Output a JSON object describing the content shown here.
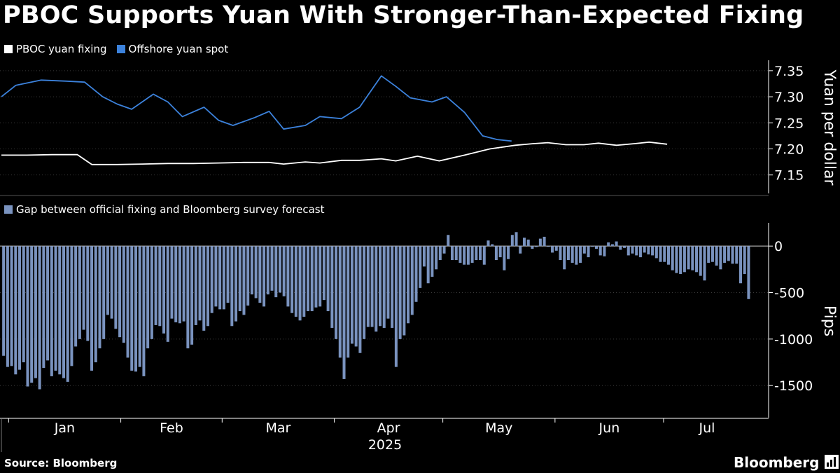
{
  "title": "PBOC Supports Yuan With Stronger-Than-Expected Fixing",
  "source": "Source: Bloomberg",
  "brand": "Bloomberg",
  "brand_icon": "bloomberg-terminal-icon",
  "colors": {
    "background": "#000000",
    "fixing": "#ffffff",
    "spot": "#3c82dc",
    "gap": "#7a93bf",
    "axis": "#ffffff",
    "grid": "#3a3a3a"
  },
  "chart_data": [
    {
      "type": "line",
      "legend": [
        "PBOC yuan fixing",
        "Offshore yuan spot"
      ],
      "legend_placement": "top-left",
      "ylabel": "Yuan per dollar",
      "yticks": [
        "7.15",
        "7.20",
        "7.25",
        "7.30",
        "7.35"
      ],
      "ylim": [
        7.12,
        7.37
      ],
      "xlim": [
        "2024-12-30",
        "2025-07-25"
      ],
      "series": [
        {
          "name": "PBOC yuan fixing",
          "points": [
            [
              "2024-12-30",
              7.188
            ],
            [
              "2025-01-06",
              7.188
            ],
            [
              "2025-01-13",
              7.189
            ],
            [
              "2025-01-20",
              7.189
            ],
            [
              "2025-01-24",
              7.17
            ],
            [
              "2025-01-31",
              7.17
            ],
            [
              "2025-02-07",
              7.171
            ],
            [
              "2025-02-14",
              7.172
            ],
            [
              "2025-02-21",
              7.172
            ],
            [
              "2025-02-28",
              7.173
            ],
            [
              "2025-03-07",
              7.174
            ],
            [
              "2025-03-14",
              7.174
            ],
            [
              "2025-03-18",
              7.171
            ],
            [
              "2025-03-24",
              7.175
            ],
            [
              "2025-03-28",
              7.173
            ],
            [
              "2025-04-03",
              7.178
            ],
            [
              "2025-04-08",
              7.178
            ],
            [
              "2025-04-14",
              7.181
            ],
            [
              "2025-04-18",
              7.177
            ],
            [
              "2025-04-24",
              7.186
            ],
            [
              "2025-04-30",
              7.177
            ],
            [
              "2025-05-07",
              7.188
            ],
            [
              "2025-05-14",
              7.2
            ],
            [
              "2025-05-21",
              7.207
            ],
            [
              "2025-05-26",
              7.21
            ],
            [
              "2025-05-30",
              7.212
            ],
            [
              "2025-06-04",
              7.208
            ],
            [
              "2025-06-09",
              7.208
            ],
            [
              "2025-06-13",
              7.211
            ],
            [
              "2025-06-18",
              7.207
            ],
            [
              "2025-06-23",
              7.21
            ],
            [
              "2025-06-27",
              7.213
            ],
            [
              "2025-07-02",
              7.209
            ]
          ]
        },
        {
          "name": "Offshore yuan spot",
          "points": [
            [
              "2024-12-30",
              7.3
            ],
            [
              "2025-01-03",
              7.322
            ],
            [
              "2025-01-10",
              7.332
            ],
            [
              "2025-01-17",
              7.33
            ],
            [
              "2025-01-22",
              7.328
            ],
            [
              "2025-01-27",
              7.3
            ],
            [
              "2025-01-31",
              7.286
            ],
            [
              "2025-02-04",
              7.276
            ],
            [
              "2025-02-10",
              7.305
            ],
            [
              "2025-02-14",
              7.29
            ],
            [
              "2025-02-18",
              7.262
            ],
            [
              "2025-02-24",
              7.28
            ],
            [
              "2025-02-28",
              7.255
            ],
            [
              "2025-03-04",
              7.245
            ],
            [
              "2025-03-10",
              7.26
            ],
            [
              "2025-03-14",
              7.272
            ],
            [
              "2025-03-18",
              7.238
            ],
            [
              "2025-03-24",
              7.245
            ],
            [
              "2025-03-28",
              7.262
            ],
            [
              "2025-04-03",
              7.258
            ],
            [
              "2025-04-08",
              7.28
            ],
            [
              "2025-04-14",
              7.34
            ],
            [
              "2025-04-18",
              7.32
            ],
            [
              "2025-04-22",
              7.298
            ],
            [
              "2025-04-28",
              7.29
            ],
            [
              "2025-05-02",
              7.3
            ],
            [
              "2025-05-07",
              7.27
            ],
            [
              "2025-05-12",
              7.225
            ],
            [
              "2025-05-16",
              7.218
            ],
            [
              "2025-05-20",
              7.215
            ]
          ]
        }
      ]
    },
    {
      "type": "bar",
      "legend": [
        "Gap between official fixing and Bloomberg survey forecast"
      ],
      "legend_placement": "top-left",
      "ylabel": "Pips",
      "yticks": [
        "-1500",
        "-1000",
        "-500",
        "0"
      ],
      "ylim": [
        -1800,
        250
      ],
      "xlim": [
        "2024-12-30",
        "2025-07-25"
      ],
      "xticks": [
        "Jan",
        "Feb",
        "Mar",
        "Apr",
        "May",
        "Jun",
        "Jul"
      ],
      "year_label": "2025",
      "series": [
        {
          "name": "Gap between official fixing and Bloomberg survey forecast",
          "start": "2024-12-30",
          "values": [
            -1180,
            -1300,
            -1290,
            -1380,
            -1330,
            -1250,
            -1510,
            -1470,
            -1420,
            -1540,
            -1310,
            -1230,
            -1400,
            -1340,
            -1380,
            -1420,
            -1460,
            -1290,
            -1080,
            -1000,
            -900,
            -1020,
            -1340,
            -1250,
            -1100,
            -1000,
            -740,
            -780,
            -890,
            -980,
            -1040,
            -1200,
            -1340,
            -1350,
            -1300,
            -1400,
            -1100,
            -1000,
            -850,
            -860,
            -940,
            -1030,
            -780,
            -820,
            -830,
            -810,
            -1100,
            -1060,
            -850,
            -800,
            -910,
            -860,
            -720,
            -650,
            -680,
            -680,
            -610,
            -860,
            -810,
            -700,
            -740,
            -640,
            -520,
            -560,
            -610,
            -650,
            -520,
            -480,
            -550,
            -500,
            -540,
            -650,
            -720,
            -760,
            -800,
            -760,
            -700,
            -700,
            -660,
            -650,
            -580,
            -700,
            -880,
            -1000,
            -1200,
            -1430,
            -1200,
            -1050,
            -1080,
            -1150,
            -1000,
            -870,
            -870,
            -920,
            -860,
            -880,
            -780,
            -880,
            -1300,
            -1000,
            -960,
            -830,
            -740,
            -600,
            -450,
            -220,
            -400,
            -330,
            -250,
            -150,
            -80,
            120,
            -150,
            -150,
            -180,
            -200,
            -200,
            -180,
            -150,
            -150,
            -200,
            60,
            20,
            -150,
            -120,
            -260,
            -140,
            120,
            150,
            -80,
            90,
            70,
            -30,
            -10,
            80,
            100,
            0,
            -70,
            -50,
            -150,
            -250,
            -150,
            -180,
            -200,
            -180,
            -80,
            -120,
            0,
            -30,
            -100,
            -110,
            40,
            20,
            50,
            -40,
            -20,
            -100,
            -80,
            -100,
            -120,
            -70,
            -90,
            -100,
            -130,
            -170,
            -170,
            -200,
            -260,
            -290,
            -300,
            -280,
            -250,
            -260,
            -280,
            -320,
            -370,
            -180,
            -170,
            -210,
            -250,
            -180,
            -160,
            -190,
            -190,
            -400,
            -300,
            -570
          ]
        }
      ]
    }
  ]
}
